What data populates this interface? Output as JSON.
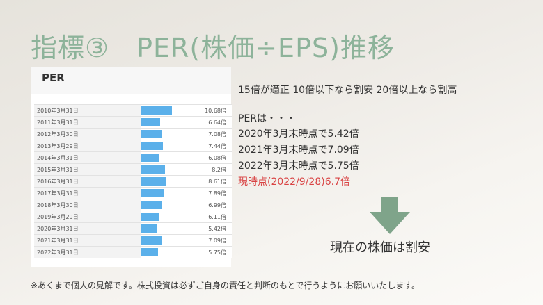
{
  "slide": {
    "title": "指標③　PER(株価÷EPS)推移"
  },
  "per_panel": {
    "header": "PER",
    "rows": [
      {
        "date": "2010年3月31日",
        "value": "10.68倍"
      },
      {
        "date": "2011年3月31日",
        "value": "6.64倍"
      },
      {
        "date": "2012年3月30日",
        "value": "7.08倍"
      },
      {
        "date": "2013年3月29日",
        "value": "7.44倍"
      },
      {
        "date": "2014年3月31日",
        "value": "6.08倍"
      },
      {
        "date": "2015年3月31日",
        "value": "8.2倍"
      },
      {
        "date": "2016年3月31日",
        "value": "8.61倍"
      },
      {
        "date": "2017年3月31日",
        "value": "7.89倍"
      },
      {
        "date": "2018年3月30日",
        "value": "6.99倍"
      },
      {
        "date": "2019年3月29日",
        "value": "6.11倍"
      },
      {
        "date": "2020年3月31日",
        "value": "5.42倍"
      },
      {
        "date": "2021年3月31日",
        "value": "7.09倍"
      },
      {
        "date": "2022年3月31日",
        "value": "5.75倍"
      }
    ]
  },
  "notes": {
    "guideline": "15倍が適正 10倍以下なら割安 20倍以上なら割高",
    "per_intro": "PERは・・・",
    "line_2020": "2020年3月末時点で5.42倍",
    "line_2021": "2021年3月末時点で7.09倍",
    "line_2022": "2022年3月末時点で5.75倍",
    "line_current": "現時点(2022/9/28)6.7倍"
  },
  "conclusion": "現在の株価は割安",
  "disclaimer": "※あくまで個人の見解です。株式投資は必ずご自身の責任と判断のもとで行うようにお願いいたします。",
  "colors": {
    "title": "#8db39a",
    "bar": "#5bb0ea",
    "arrow": "#7fa48a",
    "highlight": "#d94343"
  },
  "chart_data": {
    "type": "bar",
    "categories": [
      "2010年3月31日",
      "2011年3月31日",
      "2012年3月30日",
      "2013年3月29日",
      "2014年3月31日",
      "2015年3月31日",
      "2016年3月31日",
      "2017年3月31日",
      "2018年3月30日",
      "2019年3月29日",
      "2020年3月31日",
      "2021年3月31日",
      "2022年3月31日"
    ],
    "values": [
      10.68,
      6.64,
      7.08,
      7.44,
      6.08,
      8.2,
      8.61,
      7.89,
      6.99,
      6.11,
      5.42,
      7.09,
      5.75
    ],
    "title": "PER"
  }
}
